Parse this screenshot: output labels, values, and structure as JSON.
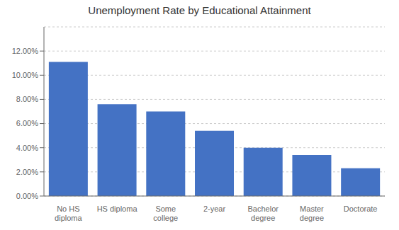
{
  "chart_data": {
    "type": "bar",
    "title": "Unemployment Rate by Educational Attainment",
    "categories": [
      "No HS\ndiploma",
      "HS diploma",
      "Some\ncollege",
      "2-year",
      "Bachelor\ndegree",
      "Master\ndegree",
      "Doctorate"
    ],
    "values": [
      0.111,
      0.076,
      0.07,
      0.054,
      0.04,
      0.034,
      0.023
    ],
    "color": "#4472C4",
    "ylim": [
      0,
      0.14
    ],
    "yticks": [
      {
        "value": 0.0,
        "label": "0.00%"
      },
      {
        "value": 0.02,
        "label": "2.00%"
      },
      {
        "value": 0.04,
        "label": "4.00%"
      },
      {
        "value": 0.06,
        "label": "6.00%"
      },
      {
        "value": 0.08,
        "label": "8.00%"
      },
      {
        "value": 0.1,
        "label": "10.00%"
      },
      {
        "value": 0.12,
        "label": "12.00%"
      }
    ],
    "grid": true
  }
}
